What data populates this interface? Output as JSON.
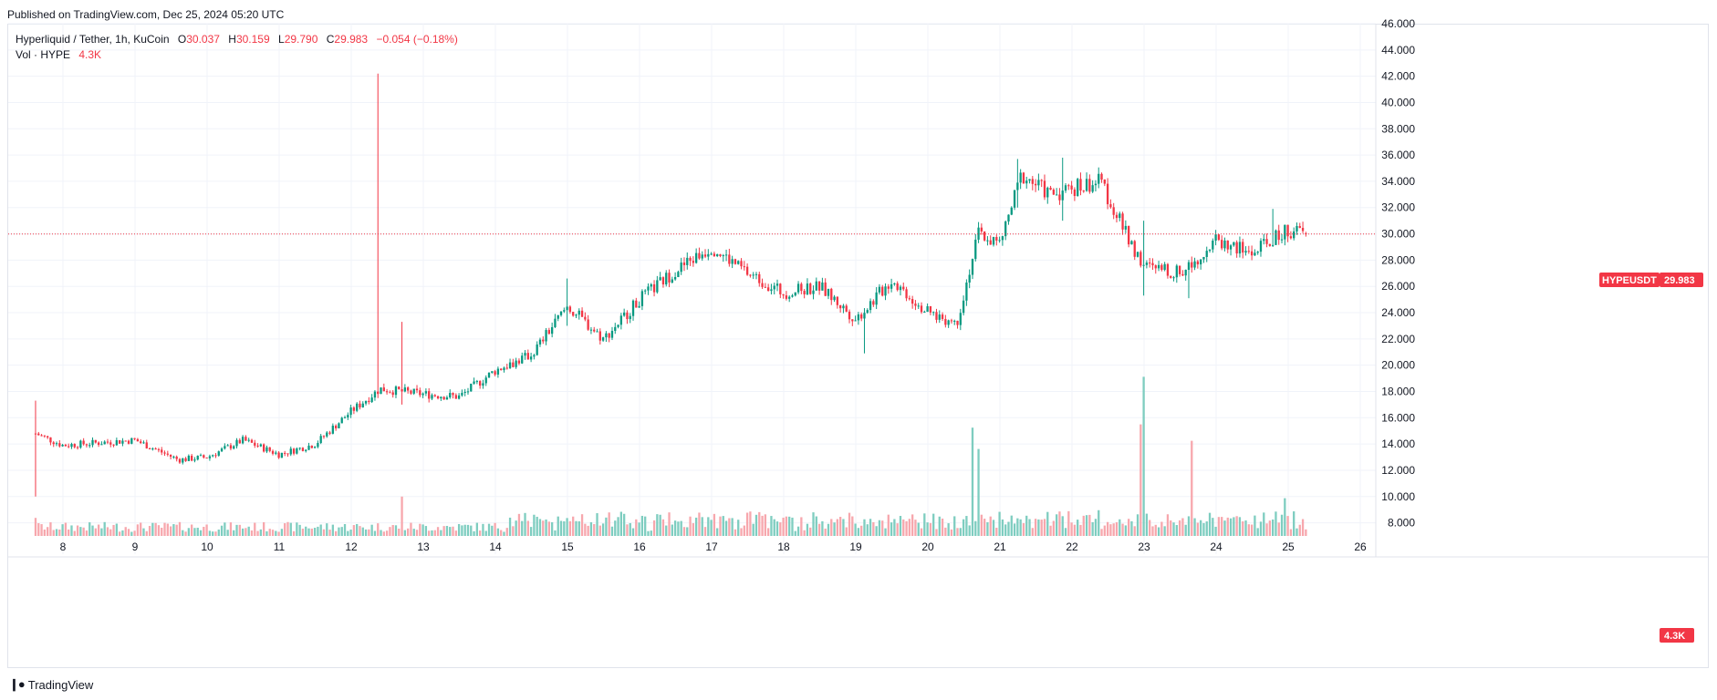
{
  "header": {
    "published": "Published on TradingView.com, Dec 25, 2024 05:20 UTC"
  },
  "legend": {
    "title": "Hyperliquid / Tether, 1h, KuCoin",
    "open_label": "O",
    "open": "30.037",
    "high_label": "H",
    "high": "30.159",
    "low_label": "L",
    "low": "29.790",
    "close_label": "C",
    "close": "29.983",
    "change": "−0.054 (−0.18%)",
    "vol_label": "Vol · HYPE",
    "vol": "4.3K"
  },
  "price_badge": {
    "symbol": "HYPEUSDT",
    "price": "29.983"
  },
  "volume_badge": {
    "value": "4.3K"
  },
  "footer": {
    "brand": "TradingView"
  },
  "colors": {
    "up": "#089981",
    "down": "#f23645",
    "up_vol": "#7ecdc0",
    "down_vol": "#f7a7ad",
    "grid": "#f0f3fa"
  },
  "chart_data": {
    "type": "candlestick",
    "title": "Hyperliquid / Tether, 1h, KuCoin",
    "y_ticks": [
      "46.000",
      "44.000",
      "42.000",
      "40.000",
      "38.000",
      "36.000",
      "34.000",
      "32.000",
      "30.000",
      "28.000",
      "26.000",
      "24.000",
      "22.000",
      "20.000",
      "18.000",
      "16.000",
      "14.000",
      "12.000",
      "10.000",
      "8.000"
    ],
    "ylim": [
      7,
      46
    ],
    "x_ticks": [
      "8",
      "9",
      "10",
      "11",
      "12",
      "13",
      "14",
      "15",
      "16",
      "17",
      "18",
      "19",
      "20",
      "21",
      "22",
      "23",
      "24",
      "25",
      "26"
    ],
    "x_range_days": [
      7.6,
      26.3
    ],
    "last_price": 29.983,
    "last_volume": "4.3K",
    "key_points": [
      {
        "day": 7.62,
        "close": 14.8
      },
      {
        "day": 8.0,
        "close": 13.9
      },
      {
        "day": 9.0,
        "close": 14.3
      },
      {
        "day": 9.6,
        "close": 12.8
      },
      {
        "day": 10.0,
        "close": 13.0
      },
      {
        "day": 10.5,
        "close": 14.3
      },
      {
        "day": 11.0,
        "close": 13.2
      },
      {
        "day": 11.5,
        "close": 14.0
      },
      {
        "day": 12.0,
        "close": 16.5
      },
      {
        "day": 12.4,
        "close": 18.2
      },
      {
        "day": 13.0,
        "close": 17.8
      },
      {
        "day": 13.5,
        "close": 17.6
      },
      {
        "day": 14.0,
        "close": 19.6
      },
      {
        "day": 14.5,
        "close": 20.8
      },
      {
        "day": 15.0,
        "close": 24.5
      },
      {
        "day": 15.5,
        "close": 22.0
      },
      {
        "day": 16.0,
        "close": 25.0
      },
      {
        "day": 16.5,
        "close": 27.2
      },
      {
        "day": 17.0,
        "close": 29.0
      },
      {
        "day": 17.5,
        "close": 27.0
      },
      {
        "day": 18.0,
        "close": 25.5
      },
      {
        "day": 18.5,
        "close": 26.0
      },
      {
        "day": 19.0,
        "close": 23.5
      },
      {
        "day": 19.5,
        "close": 26.5
      },
      {
        "day": 20.0,
        "close": 24.0
      },
      {
        "day": 20.4,
        "close": 23.2
      },
      {
        "day": 20.7,
        "close": 30.0
      },
      {
        "day": 21.0,
        "close": 29.2
      },
      {
        "day": 21.3,
        "close": 34.5
      },
      {
        "day": 21.7,
        "close": 33.0
      },
      {
        "day": 22.0,
        "close": 33.5
      },
      {
        "day": 22.4,
        "close": 34.0
      },
      {
        "day": 22.7,
        "close": 30.5
      },
      {
        "day": 23.0,
        "close": 27.5
      },
      {
        "day": 23.5,
        "close": 27.0
      },
      {
        "day": 24.0,
        "close": 29.5
      },
      {
        "day": 24.5,
        "close": 28.5
      },
      {
        "day": 25.0,
        "close": 30.3
      },
      {
        "day": 25.25,
        "close": 29.983
      }
    ],
    "wick_highs": [
      {
        "day": 7.62,
        "high": 17.3,
        "low": 10.0
      },
      {
        "day": 12.37,
        "high": 42.2,
        "low": 17.5
      },
      {
        "day": 12.72,
        "high": 23.3,
        "low": 17.0
      },
      {
        "day": 15.0,
        "high": 26.6,
        "low": 23.0
      },
      {
        "day": 21.25,
        "high": 35.7,
        "low": 32.0
      },
      {
        "day": 21.85,
        "high": 35.8,
        "low": 31.0
      },
      {
        "day": 23.0,
        "high": 31.0,
        "low": 25.3
      },
      {
        "day": 23.6,
        "high": 28.0,
        "low": 25.1
      },
      {
        "day": 19.1,
        "high": 24.0,
        "low": 20.9
      },
      {
        "day": 24.8,
        "high": 31.9,
        "low": 29.0
      }
    ],
    "volume_ylim": [
      0,
      10
    ],
    "volume_peaks": [
      {
        "day": 7.62,
        "v": 1.1
      },
      {
        "day": 12.72,
        "v": 2.4
      },
      {
        "day": 20.6,
        "v": 6.6
      },
      {
        "day": 20.7,
        "v": 5.3
      },
      {
        "day": 23.0,
        "v": 9.7
      },
      {
        "day": 22.95,
        "v": 6.8
      },
      {
        "day": 23.65,
        "v": 5.8
      },
      {
        "day": 24.95,
        "v": 2.3
      },
      {
        "day": 25.25,
        "v": 0.4
      }
    ]
  }
}
